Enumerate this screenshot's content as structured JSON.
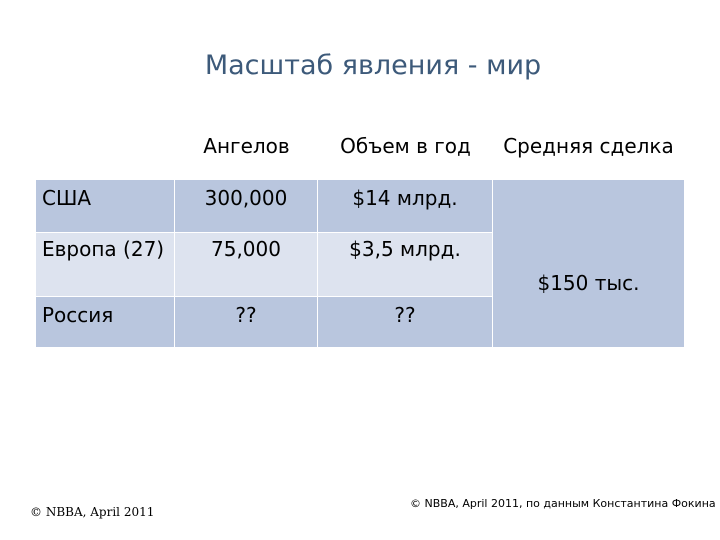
{
  "title": "Масштаб явления - мир",
  "table": {
    "headers": [
      "Ангелов",
      "Объем в год",
      "Средняя сделка"
    ],
    "rows": [
      {
        "label": "США",
        "angels": "300,000",
        "volume": "$14 млрд."
      },
      {
        "label": "Европа (27)",
        "angels": "75,000",
        "volume": "$3,5 млрд."
      },
      {
        "label": "Россия",
        "angels": "??",
        "volume": "??"
      }
    ],
    "avg_deal": "$150 тыс."
  },
  "footer": {
    "left": "© NBBA, April 2011",
    "right": "© NBBA, April 2011, по данным Константина Фокина"
  },
  "colors": {
    "title": "#3d5a7a",
    "cell_dark": "#b9c6de",
    "cell_light": "#dde3ef"
  }
}
